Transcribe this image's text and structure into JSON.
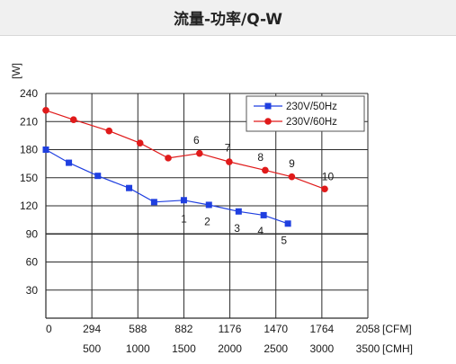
{
  "header": {
    "title": "流量-功率/Q-W"
  },
  "chart_data": {
    "type": "line",
    "ylabel": "[W]",
    "ylim": [
      0,
      240
    ],
    "y_ticks": [
      30,
      60,
      90,
      120,
      150,
      180,
      210,
      240
    ],
    "y_tick_labels": [
      "30",
      "60",
      "90",
      "120",
      "150",
      "180",
      "210",
      "240"
    ],
    "x_unit_cfm": "[CFM]",
    "x_unit_cmh": "[CMH]",
    "xlim": [
      0,
      2058
    ],
    "x_ticks_cfm": [
      0,
      294,
      588,
      882,
      1176,
      1470,
      1764,
      2058
    ],
    "x_tick_labels_cfm": [
      "0",
      "294",
      "588",
      "882",
      "1176",
      "1470",
      "1764",
      "2058"
    ],
    "x_ticks_cmh": [
      500,
      1000,
      1500,
      2000,
      2500,
      3000,
      3500
    ],
    "x_tick_labels_cmh": [
      "500",
      "1000",
      "1500",
      "2000",
      "2500",
      "3000",
      "3500"
    ],
    "grid": true,
    "legend_position": "top-right",
    "series": [
      {
        "name": "230V/50Hz",
        "color": "#1f3fe0",
        "marker": "square",
        "x": [
          0,
          147,
          332,
          532,
          692,
          882,
          1042,
          1232,
          1392,
          1547
        ],
        "y": [
          180,
          166,
          152,
          139,
          124,
          126,
          121,
          114,
          110,
          101
        ]
      },
      {
        "name": "230V/60Hz",
        "color": "#e01a1a",
        "marker": "circle",
        "x": [
          0,
          177,
          404,
          602,
          782,
          982,
          1172,
          1402,
          1572,
          1782
        ],
        "y": [
          222,
          212,
          200,
          187,
          171,
          176,
          167,
          158,
          151,
          138
        ]
      }
    ],
    "annotations": [
      {
        "text": "1",
        "x": 882,
        "y": 106
      },
      {
        "text": "2",
        "x": 1032,
        "y": 103
      },
      {
        "text": "3",
        "x": 1222,
        "y": 96
      },
      {
        "text": "4",
        "x": 1372,
        "y": 93
      },
      {
        "text": "5",
        "x": 1522,
        "y": 83
      },
      {
        "text": "6",
        "x": 962,
        "y": 190
      },
      {
        "text": "7",
        "x": 1162,
        "y": 182
      },
      {
        "text": "8",
        "x": 1372,
        "y": 172
      },
      {
        "text": "9",
        "x": 1572,
        "y": 165
      },
      {
        "text": "10",
        "x": 1802,
        "y": 151
      }
    ]
  }
}
